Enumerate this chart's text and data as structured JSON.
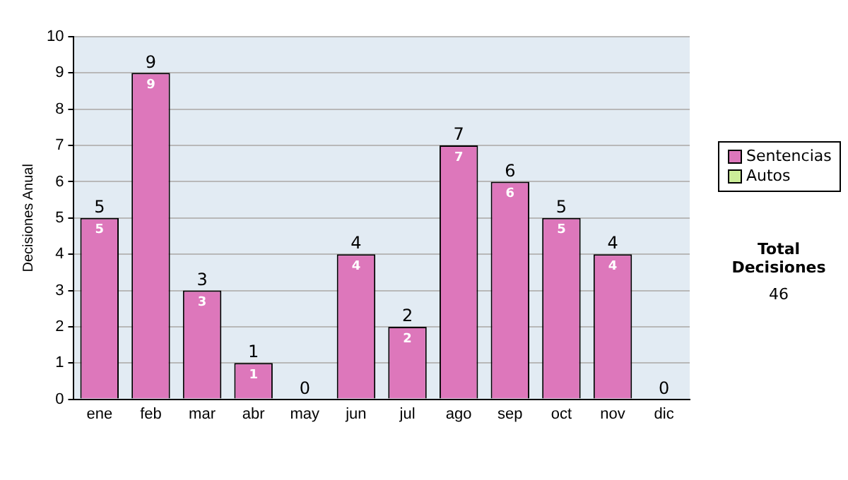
{
  "chart_data": {
    "type": "bar",
    "ylabel": "Decisiones Anual",
    "categories": [
      "ene",
      "feb",
      "mar",
      "abr",
      "may",
      "jun",
      "jul",
      "ago",
      "sep",
      "oct",
      "nov",
      "dic"
    ],
    "series": [
      {
        "name": "Sentencias",
        "color": "#dd77bb",
        "values": [
          5,
          9,
          3,
          1,
          0,
          4,
          2,
          7,
          6,
          5,
          4,
          0
        ],
        "value_labels": [
          "5",
          "9",
          "3",
          "1",
          null,
          "4",
          "2",
          "7",
          "6",
          "5",
          "4",
          null
        ]
      },
      {
        "name": "Autos",
        "color": "#ccee99",
        "values": [
          0,
          0,
          0,
          0,
          0,
          0,
          0,
          0,
          0,
          0,
          0,
          0
        ]
      }
    ],
    "stacked": true,
    "totals": [
      "5",
      "9",
      "3",
      "1",
      "0",
      "4",
      "2",
      "7",
      "6",
      "5",
      "4",
      "0"
    ],
    "ylim": [
      0,
      10
    ],
    "yticks": [
      0,
      1,
      2,
      3,
      4,
      5,
      6,
      7,
      8,
      9,
      10
    ],
    "grid": "y",
    "legend": "right",
    "annotations": [
      "Total Decisiones",
      "46"
    ]
  }
}
